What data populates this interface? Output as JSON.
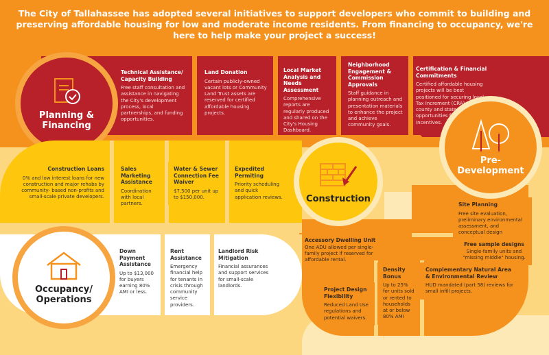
{
  "headline": "The City of Tallahassee has adopted several initiatives to support developers who commit to building and preserving affordable housing for low and moderate income residents. From financing to occupancy, we're here to help make your project a success!",
  "colors": {
    "red": "#b8202a",
    "orange": "#f5921e",
    "yellow": "#fec70e",
    "cream": "#fdd77f",
    "white": "#ffffff"
  },
  "stages": {
    "planning": {
      "title": "Planning & Financing",
      "icon": "clipboard-check-icon",
      "items": [
        {
          "title": "Technical Assistance/ Capacity Building",
          "text": "Free staff consultation and assistance in navigating the City's development process, local partnerships, and funding opportunities."
        },
        {
          "title": "Land Donation",
          "text": "Certain publicly-owned vacant lots or Community Land Trust assets are reserved for certified affordable housing projects."
        },
        {
          "title": "Local Market Analysis and Needs Assessment",
          "text": "Comprehensive reports are regularly produced and shared on the City's Housing Dashboard."
        },
        {
          "title": "Neighborhood Engagement & Commission Approvals",
          "text": "Staff guidance in planning outreach and presentation materials to enhance the project and achieve community goals."
        },
        {
          "title": "Certification & Financial Commitments",
          "text": "Certified affordable housing projects will be best positioned for securing local Tax Increment (CRA) and other county and state financing opportunities for State Tax Incentives."
        }
      ]
    },
    "predevelopment": {
      "title": "Pre-Development",
      "icon": "trees-icon",
      "items": [
        {
          "title": "Site Planning",
          "text": "Free site evaluation, preliminary environmental assessment, and conceptual design consultation."
        },
        {
          "title": "Free sample designs",
          "text": "Single-family units and \"missing middle\" housing."
        }
      ]
    },
    "construction": {
      "title": "Construction",
      "icon": "bricks-trowel-icon",
      "items": [
        {
          "title": "Construction Loans",
          "text": "0% and low interest loans for new construction and major rehabs by community- based non-profits and small-scale private developers."
        },
        {
          "title": "Sales Marketing Assistance",
          "text": "Coordination with local partners."
        },
        {
          "title": "Water & Sewer Connection Fee Waiver",
          "text": "$7,500 per unit up to $150,000."
        },
        {
          "title": "Expedited Permiting",
          "text": "Priority scheduling and quick application reviews."
        },
        {
          "title": "Accessory Dwelling Unit",
          "text": "One ADU allowed per single-family project if reserved for affordable rental."
        },
        {
          "title": "Project Design Flexibility",
          "text": "Reduced Land Use regulations and potential waivers."
        },
        {
          "title": "Density Bonus",
          "text": "Up to 25% for units sold or rented to households at or below 80% AMI"
        },
        {
          "title": "Complementary Natural Area & Environmental Review",
          "text": "HUD mandated (part 58) reviews for small infill projects."
        }
      ]
    },
    "occupancy": {
      "title": "Occupancy/ Operations",
      "icon": "house-icon",
      "items": [
        {
          "title": "Down Payment Assistance",
          "text": "Up to $13,000 for buyers earning 80% AMI or less."
        },
        {
          "title": "Rent Assistance",
          "text": "Emergency financial help for tenants in crisis through community service providers."
        },
        {
          "title": "Landlord Risk Mitigation",
          "text": "Financial assurances and support services for small-scale landlords."
        }
      ]
    }
  }
}
